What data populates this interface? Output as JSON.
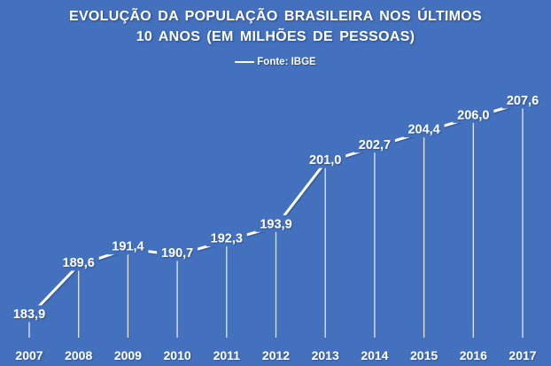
{
  "header": {
    "title_lines": [
      "EVOLUÇÃO DA POPULAÇÃO BRASILEIRA NOS ÚLTIMOS",
      "10 ANOS (EM MILHÕES DE PESSOAS)"
    ]
  },
  "legend": {
    "label": "Fonte: IBGE"
  },
  "colors": {
    "background": "#4471bd",
    "line": "#ffffff",
    "text": "#ffffff",
    "text_shadow": "#122a5e"
  },
  "chart_data": {
    "type": "line",
    "title": "EVOLUÇÃO DA POPULAÇÃO BRASILEIRA NOS ÚLTIMOS 10 ANOS (EM MILHÕES DE PESSOAS)",
    "x": [
      "2007",
      "2008",
      "2009",
      "2010",
      "2011",
      "2012",
      "2013",
      "2014",
      "2015",
      "2016",
      "2017"
    ],
    "series": [
      {
        "name": "Fonte: IBGE",
        "values": [
          183.9,
          189.6,
          191.4,
          190.7,
          192.3,
          193.9,
          201.0,
          202.7,
          204.4,
          206.0,
          207.6
        ]
      }
    ],
    "point_labels": [
      "183,9",
      "189,6",
      "191,4",
      "190,7",
      "192,3",
      "193,9",
      "201,0",
      "202,7",
      "204,4",
      "206,0",
      "207,6"
    ],
    "xlabel": "",
    "ylabel": "",
    "ylim": [
      183.9,
      207.6
    ],
    "grid": false,
    "legend_position": "top",
    "marker": "vertical-drop-lines",
    "decimal_separator": ","
  }
}
